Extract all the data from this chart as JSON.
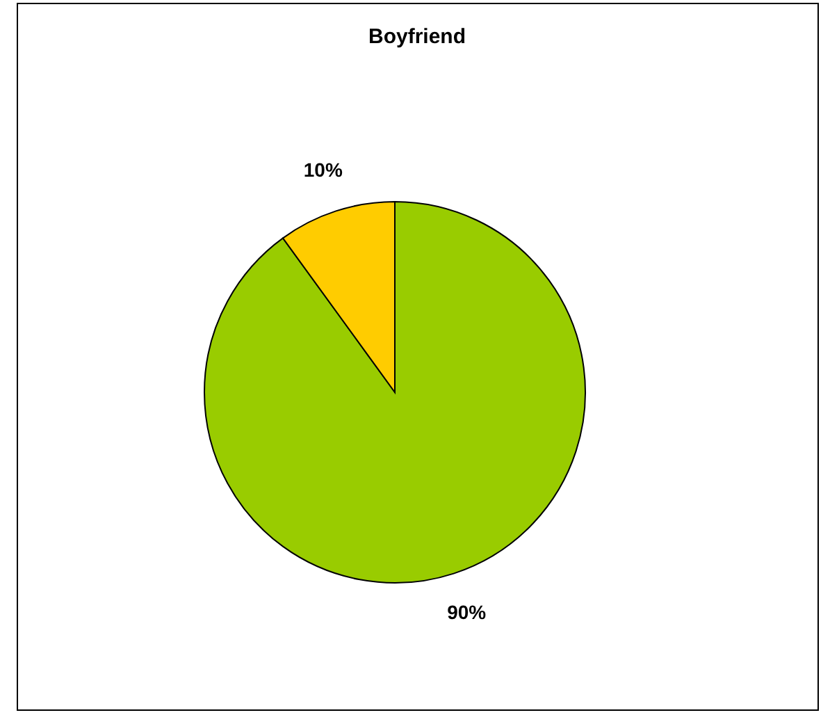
{
  "chart_data": {
    "type": "pie",
    "title": "Boyfriend",
    "categories": [
      null,
      null
    ],
    "values": [
      90,
      10
    ],
    "colors": [
      "#99cc00",
      "#ffcc00"
    ],
    "value_labels": [
      "90%",
      "10%"
    ],
    "legend": false
  }
}
